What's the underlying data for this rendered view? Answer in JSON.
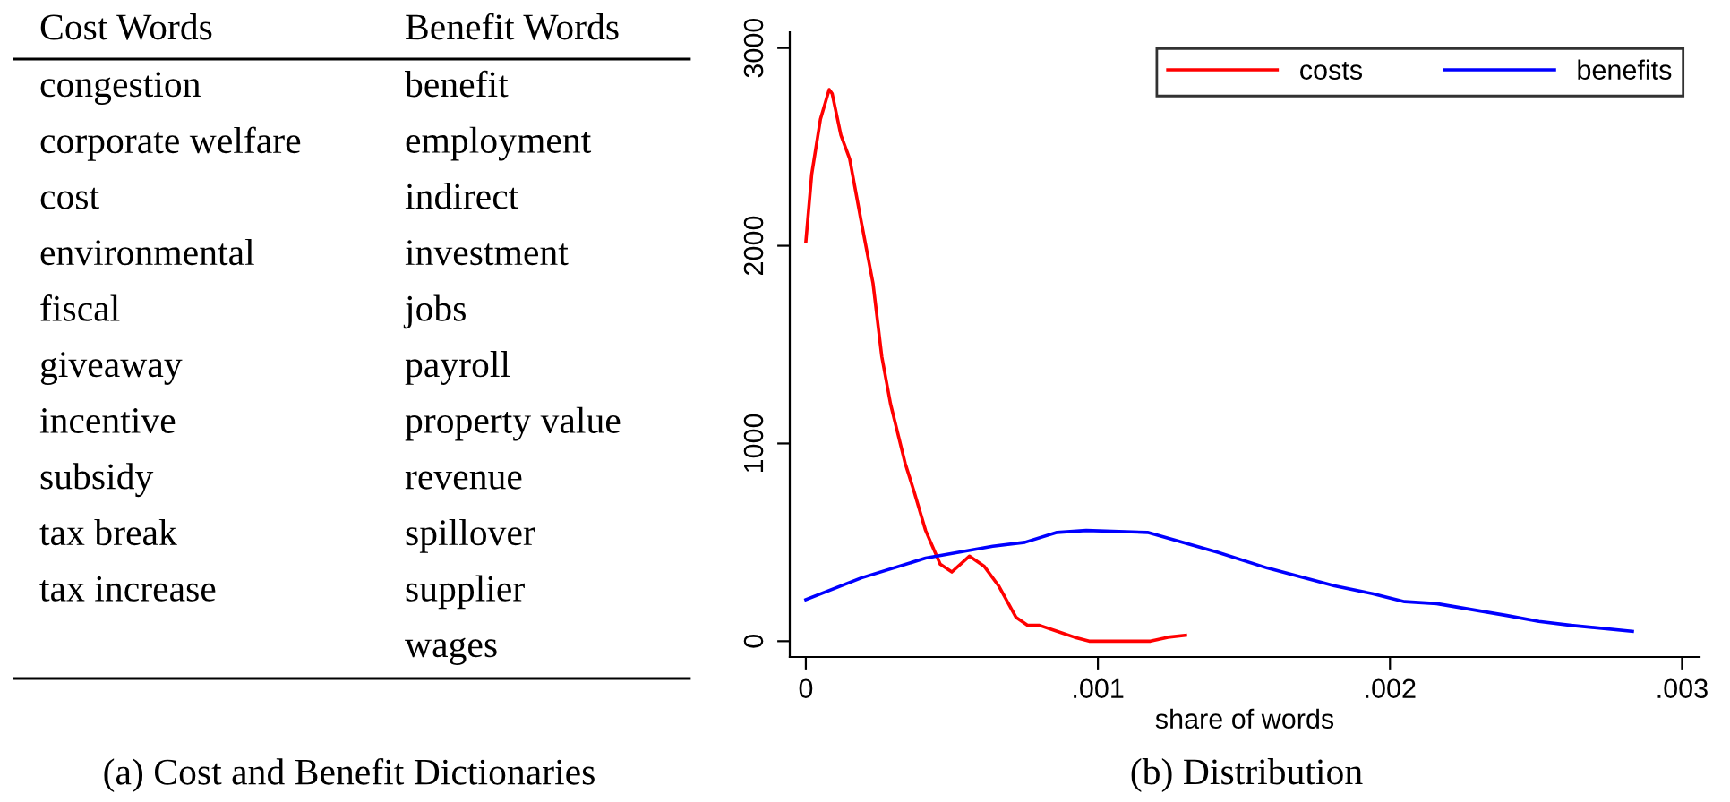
{
  "chart_data": [
    {
      "type": "other",
      "title": "(a) Cost and Benefit Dictionaries",
      "categories": [
        "Cost Words",
        "Benefit Words"
      ],
      "annotations": [
        "congestion",
        "benefit",
        "corporate welfare",
        "employment",
        "cost",
        "indirect",
        "environmental",
        "investment",
        "fiscal",
        "jobs",
        "giveaway",
        "payroll",
        "incentive",
        "property value",
        "subsidy",
        "revenue",
        "tax break",
        "spillover",
        "tax increase",
        "supplier",
        null,
        "wages"
      ]
    },
    {
      "type": "line",
      "title": "(b) Distribution",
      "xlabel": "share of words",
      "xlim": [
        -5.5e-05,
        0.00306
      ],
      "ylim": [
        -80,
        3080
      ],
      "xticks": [
        {
          "value": 0,
          "label": "0"
        },
        {
          "value": 0.001,
          "label": ".001"
        },
        {
          "value": 0.002,
          "label": ".002"
        },
        {
          "value": 0.003,
          "label": ".003"
        }
      ],
      "yticks": [
        0,
        1000,
        2000,
        3000
      ],
      "grid": false,
      "legend": "top right",
      "series": [
        {
          "name": "costs",
          "color": "#ff0000",
          "x": [
            0,
            2e-05,
            5e-05,
            8e-05,
            9e-05,
            0.00012,
            0.00015,
            0.00019,
            0.00023,
            0.00026,
            0.00029,
            0.00034,
            0.00037,
            0.00041,
            0.00046,
            0.0005,
            0.00056,
            0.00061,
            0.00066,
            0.00072,
            0.00076,
            0.0008,
            0.00086,
            0.00092,
            0.00097,
            0.00118,
            0.00124,
            0.0013
          ],
          "values": [
            2020,
            2360,
            2640,
            2790,
            2770,
            2560,
            2440,
            2120,
            1810,
            1440,
            1200,
            900,
            760,
            560,
            390,
            350,
            430,
            380,
            280,
            120,
            80,
            80,
            50,
            20,
            0,
            0,
            20,
            30
          ]
        },
        {
          "name": "benefits",
          "color": "#0000ff",
          "x": [
            0,
            0.00019,
            0.00041,
            0.00064,
            0.00075,
            0.00086,
            0.00096,
            0.00117,
            0.00141,
            0.00158,
            0.00181,
            0.00194,
            0.00205,
            0.00216,
            0.0024,
            0.00251,
            0.00262,
            0.00283
          ],
          "values": [
            210,
            320,
            420,
            480,
            500,
            550,
            560,
            550,
            450,
            370,
            280,
            240,
            200,
            190,
            130,
            100,
            80,
            50
          ]
        }
      ]
    }
  ]
}
